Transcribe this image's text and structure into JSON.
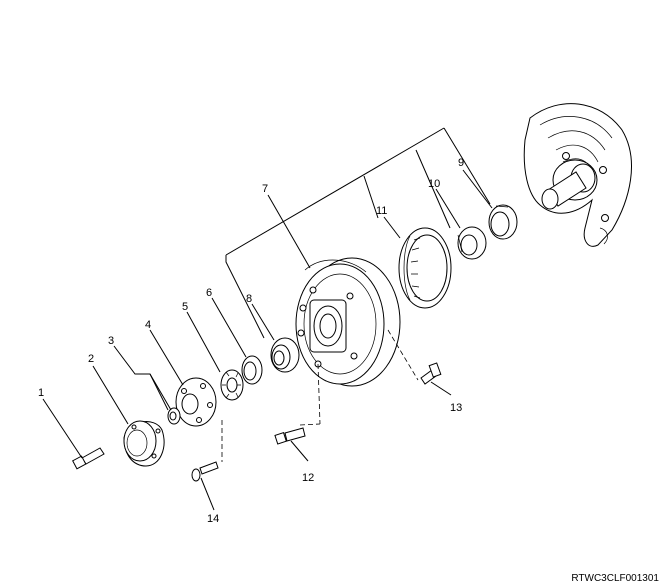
{
  "figure_code": "RTWC3CLF001301",
  "callouts": [
    "1",
    "2",
    "3",
    "4",
    "5",
    "6",
    "7",
    "8",
    "9",
    "10",
    "11",
    "12",
    "13",
    "14"
  ]
}
